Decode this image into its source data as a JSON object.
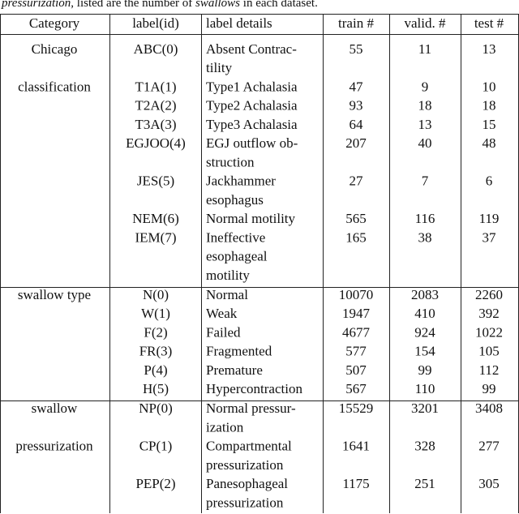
{
  "caption": [
    "pressurization",
    ", listed are the number of ",
    "swallows",
    " in each dataset."
  ],
  "table": {
    "header": [
      "Category",
      "label(id)",
      "label details",
      "train #",
      "valid. #",
      "test #"
    ],
    "groups": [
      {
        "rows": [
          {
            "category": "Chicago",
            "label": "ABC(0)",
            "details": [
              "Absent Contrac-",
              "tility"
            ],
            "train": 55,
            "valid": 11,
            "test": 13
          },
          {
            "category": "classification",
            "label": "T1A(1)",
            "details": [
              "Type1 Achalasia"
            ],
            "train": 47,
            "valid": 9,
            "test": 10
          },
          {
            "label": "T2A(2)",
            "details": [
              "Type2 Achalasia"
            ],
            "train": 93,
            "valid": 18,
            "test": 18
          },
          {
            "label": "T3A(3)",
            "details": [
              "Type3 Achalasia"
            ],
            "train": 64,
            "valid": 13,
            "test": 15
          },
          {
            "label": "EGJOO(4)",
            "details": [
              "EGJ outflow ob-",
              "struction"
            ],
            "train": 207,
            "valid": 40,
            "test": 48
          },
          {
            "label": "JES(5)",
            "details": [
              "Jackhammer",
              "esophagus"
            ],
            "train": 27,
            "valid": 7,
            "test": 6
          },
          {
            "label": "NEM(6)",
            "details": [
              "Normal motility"
            ],
            "train": 565,
            "valid": 116,
            "test": 119
          },
          {
            "label": "IEM(7)",
            "details": [
              "Ineffective",
              "esophageal",
              "motility"
            ],
            "train": 165,
            "valid": 38,
            "test": 37
          }
        ]
      },
      {
        "rows": [
          {
            "category": "swallow type",
            "label": "N(0)",
            "details": [
              "Normal"
            ],
            "train": 10070,
            "valid": 2083,
            "test": 2260
          },
          {
            "label": "W(1)",
            "details": [
              "Weak"
            ],
            "train": 1947,
            "valid": 410,
            "test": 392
          },
          {
            "label": "F(2)",
            "details": [
              "Failed"
            ],
            "train": 4677,
            "valid": 924,
            "test": 1022
          },
          {
            "label": "FR(3)",
            "details": [
              "Fragmented"
            ],
            "train": 577,
            "valid": 154,
            "test": 105
          },
          {
            "label": "P(4)",
            "details": [
              "Premature"
            ],
            "train": 507,
            "valid": 99,
            "test": 112
          },
          {
            "label": "H(5)",
            "details": [
              "Hypercontraction"
            ],
            "train": 567,
            "valid": 110,
            "test": 99
          }
        ]
      },
      {
        "rows": [
          {
            "category": "swallow",
            "label": "NP(0)",
            "details": [
              "Normal pressur-",
              "ization"
            ],
            "train": 15529,
            "valid": 3201,
            "test": 3408
          },
          {
            "category": "pressurization",
            "label": "CP(1)",
            "details": [
              "Compartmental",
              "pressurization"
            ],
            "train": 1641,
            "valid": 328,
            "test": 277
          },
          {
            "label": "PEP(2)",
            "details": [
              "Panesophageal",
              "pressurization"
            ],
            "train": 1175,
            "valid": 251,
            "test": 305
          }
        ]
      }
    ]
  }
}
